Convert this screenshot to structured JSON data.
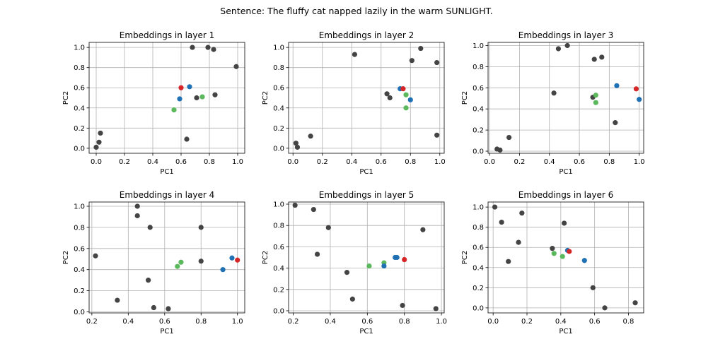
{
  "figure": {
    "suptitle": "Sentence: The fluffy cat napped lazily in the warm SUNLIGHT."
  },
  "colors": {
    "gray": "#444444",
    "blue": "#2070b4",
    "red": "#d62728",
    "green": "#5cb85c",
    "grid": "#b0b0b0"
  },
  "chart_data": [
    {
      "type": "scatter",
      "title": "Embeddings in layer 1",
      "xlabel": "PC1",
      "ylabel": "PC2",
      "xlim": [
        -0.05,
        1.05
      ],
      "ylim": [
        -0.05,
        1.05
      ],
      "xticks": [
        "0.0",
        "0.2",
        "0.4",
        "0.6",
        "0.8",
        "1.0"
      ],
      "yticks": [
        "0.0",
        "0.2",
        "0.4",
        "0.6",
        "0.8",
        "1.0"
      ],
      "grid": true,
      "series": [
        {
          "color": "gray",
          "points": [
            [
              0.0,
              0.01
            ],
            [
              0.02,
              0.06
            ],
            [
              0.03,
              0.15
            ],
            [
              0.64,
              0.09
            ],
            [
              0.71,
              0.5
            ],
            [
              0.68,
              1.0
            ],
            [
              0.79,
              1.0
            ],
            [
              0.83,
              0.98
            ],
            [
              0.84,
              0.53
            ],
            [
              0.99,
              0.81
            ]
          ]
        },
        {
          "color": "green",
          "points": [
            [
              0.55,
              0.38
            ],
            [
              0.75,
              0.51
            ]
          ]
        },
        {
          "color": "blue",
          "points": [
            [
              0.59,
              0.49
            ],
            [
              0.66,
              0.61
            ]
          ]
        },
        {
          "color": "red",
          "points": [
            [
              0.6,
              0.6
            ]
          ]
        }
      ]
    },
    {
      "type": "scatter",
      "title": "Embeddings in layer 2",
      "xlabel": "PC1",
      "ylabel": "PC2",
      "xlim": [
        -0.03,
        1.03
      ],
      "ylim": [
        -0.05,
        1.05
      ],
      "xticks": [
        "0.0",
        "0.2",
        "0.4",
        "0.6",
        "0.8",
        "1.0"
      ],
      "yticks": [
        "0.0",
        "0.2",
        "0.4",
        "0.6",
        "0.8",
        "1.0"
      ],
      "grid": true,
      "series": [
        {
          "color": "gray",
          "points": [
            [
              0.02,
              0.05
            ],
            [
              0.03,
              0.01
            ],
            [
              0.12,
              0.12
            ],
            [
              0.42,
              0.93
            ],
            [
              0.64,
              0.54
            ],
            [
              0.66,
              0.5
            ],
            [
              0.81,
              0.87
            ],
            [
              0.87,
              0.99
            ],
            [
              0.98,
              0.85
            ],
            [
              0.98,
              0.13
            ]
          ]
        },
        {
          "color": "green",
          "points": [
            [
              0.77,
              0.53
            ],
            [
              0.77,
              0.4
            ]
          ]
        },
        {
          "color": "blue",
          "points": [
            [
              0.73,
              0.59
            ],
            [
              0.8,
              0.48
            ]
          ]
        },
        {
          "color": "red",
          "points": [
            [
              0.75,
              0.59
            ]
          ]
        }
      ]
    },
    {
      "type": "scatter",
      "title": "Embeddings in layer 3",
      "xlabel": "PC1",
      "ylabel": "PC2",
      "xlim": [
        -0.01,
        1.03
      ],
      "ylim": [
        -0.02,
        1.03
      ],
      "xticks": [
        "0.0",
        "0.2",
        "0.4",
        "0.6",
        "0.8",
        "1.0"
      ],
      "yticks": [
        "0.0",
        "0.2",
        "0.4",
        "0.6",
        "0.8",
        "1.0"
      ],
      "grid": true,
      "series": [
        {
          "color": "gray",
          "points": [
            [
              0.05,
              0.02
            ],
            [
              0.07,
              0.01
            ],
            [
              0.13,
              0.13
            ],
            [
              0.43,
              0.55
            ],
            [
              0.46,
              0.97
            ],
            [
              0.52,
              1.0
            ],
            [
              0.69,
              0.51
            ],
            [
              0.7,
              0.87
            ],
            [
              0.75,
              0.89
            ],
            [
              0.84,
              0.27
            ]
          ]
        },
        {
          "color": "green",
          "points": [
            [
              0.71,
              0.53
            ],
            [
              0.71,
              0.46
            ]
          ]
        },
        {
          "color": "blue",
          "points": [
            [
              0.85,
              0.62
            ],
            [
              1.0,
              0.49
            ]
          ]
        },
        {
          "color": "red",
          "points": [
            [
              0.98,
              0.59
            ]
          ]
        }
      ]
    },
    {
      "type": "scatter",
      "title": "Embeddings in layer 4",
      "xlabel": "PC1",
      "ylabel": "PC2",
      "xlim": [
        0.185,
        1.04
      ],
      "ylim": [
        -0.01,
        1.04
      ],
      "xticks": [
        "0.2",
        "0.4",
        "0.6",
        "0.8",
        "1.0"
      ],
      "yticks": [
        "0.0",
        "0.2",
        "0.4",
        "0.6",
        "0.8",
        "1.0"
      ],
      "grid": true,
      "series": [
        {
          "color": "gray",
          "points": [
            [
              0.22,
              0.53
            ],
            [
              0.34,
              0.11
            ],
            [
              0.45,
              1.0
            ],
            [
              0.45,
              0.91
            ],
            [
              0.51,
              0.3
            ],
            [
              0.52,
              0.8
            ],
            [
              0.54,
              0.04
            ],
            [
              0.62,
              0.03
            ],
            [
              0.8,
              0.8
            ],
            [
              0.8,
              0.48
            ]
          ]
        },
        {
          "color": "green",
          "points": [
            [
              0.67,
              0.43
            ],
            [
              0.69,
              0.47
            ]
          ]
        },
        {
          "color": "blue",
          "points": [
            [
              0.92,
              0.4
            ],
            [
              0.97,
              0.51
            ]
          ]
        },
        {
          "color": "red",
          "points": [
            [
              1.0,
              0.49
            ]
          ]
        }
      ]
    },
    {
      "type": "scatter",
      "title": "Embeddings in layer 5",
      "xlabel": "PC1",
      "ylabel": "PC2",
      "xlim": [
        0.175,
        1.015
      ],
      "ylim": [
        -0.02,
        1.02
      ],
      "xticks": [
        "0.2",
        "0.4",
        "0.6",
        "0.8",
        "1.0"
      ],
      "yticks": [
        "0.0",
        "0.2",
        "0.4",
        "0.6",
        "0.8",
        "1.0"
      ],
      "grid": true,
      "series": [
        {
          "color": "gray",
          "points": [
            [
              0.21,
              0.99
            ],
            [
              0.31,
              0.95
            ],
            [
              0.33,
              0.53
            ],
            [
              0.39,
              0.78
            ],
            [
              0.49,
              0.36
            ],
            [
              0.52,
              0.11
            ],
            [
              0.79,
              0.05
            ],
            [
              0.9,
              0.76
            ],
            [
              0.97,
              0.02
            ]
          ]
        },
        {
          "color": "green",
          "points": [
            [
              0.61,
              0.42
            ],
            [
              0.69,
              0.45
            ]
          ]
        },
        {
          "color": "blue",
          "points": [
            [
              0.69,
              0.42
            ],
            [
              0.75,
              0.5
            ],
            [
              0.76,
              0.5
            ]
          ]
        },
        {
          "color": "red",
          "points": [
            [
              0.8,
              0.48
            ]
          ]
        }
      ]
    },
    {
      "type": "scatter",
      "title": "Embeddings in layer 6",
      "xlabel": "PC1",
      "ylabel": "PC2",
      "xlim": [
        -0.03,
        0.89
      ],
      "ylim": [
        -0.05,
        1.05
      ],
      "xticks": [
        "0.0",
        "0.2",
        "0.4",
        "0.6",
        "0.8"
      ],
      "yticks": [
        "0.0",
        "0.2",
        "0.4",
        "0.6",
        "0.8",
        "1.0"
      ],
      "grid": true,
      "series": [
        {
          "color": "gray",
          "points": [
            [
              0.01,
              1.0
            ],
            [
              0.05,
              0.85
            ],
            [
              0.09,
              0.46
            ],
            [
              0.15,
              0.65
            ],
            [
              0.17,
              0.94
            ],
            [
              0.35,
              0.59
            ],
            [
              0.42,
              0.84
            ],
            [
              0.59,
              0.2
            ],
            [
              0.66,
              0.0
            ],
            [
              0.84,
              0.05
            ]
          ]
        },
        {
          "color": "green",
          "points": [
            [
              0.36,
              0.54
            ],
            [
              0.41,
              0.51
            ]
          ]
        },
        {
          "color": "blue",
          "points": [
            [
              0.44,
              0.57
            ],
            [
              0.54,
              0.47
            ]
          ]
        },
        {
          "color": "red",
          "points": [
            [
              0.45,
              0.56
            ]
          ]
        }
      ]
    }
  ]
}
